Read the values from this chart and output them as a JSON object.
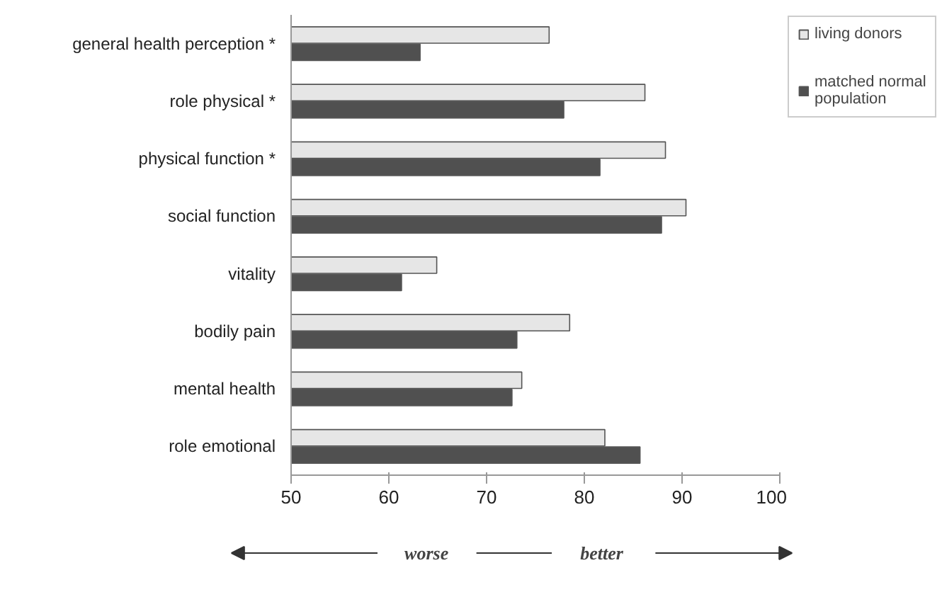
{
  "chart_data": {
    "type": "bar",
    "orientation": "horizontal",
    "categories": [
      "general health perception *",
      "role physical *",
      "physical function *",
      "social function",
      "vitality",
      "bodily pain",
      "mental health",
      "role emotional"
    ],
    "series": [
      {
        "name": "living donors",
        "color": "#e6e6e6",
        "values": [
          76.4,
          86.2,
          88.3,
          90.4,
          64.9,
          78.5,
          73.6,
          82.1
        ]
      },
      {
        "name": "matched normal population",
        "color": "#505050",
        "values": [
          63.2,
          77.9,
          81.6,
          87.9,
          61.3,
          73.1,
          72.6,
          85.7
        ]
      }
    ],
    "xlim": [
      50,
      100
    ],
    "xticks": [
      50,
      60,
      70,
      80,
      90,
      100
    ],
    "legend": "top right",
    "grid": false,
    "annotations": [
      "worse",
      "better"
    ]
  }
}
